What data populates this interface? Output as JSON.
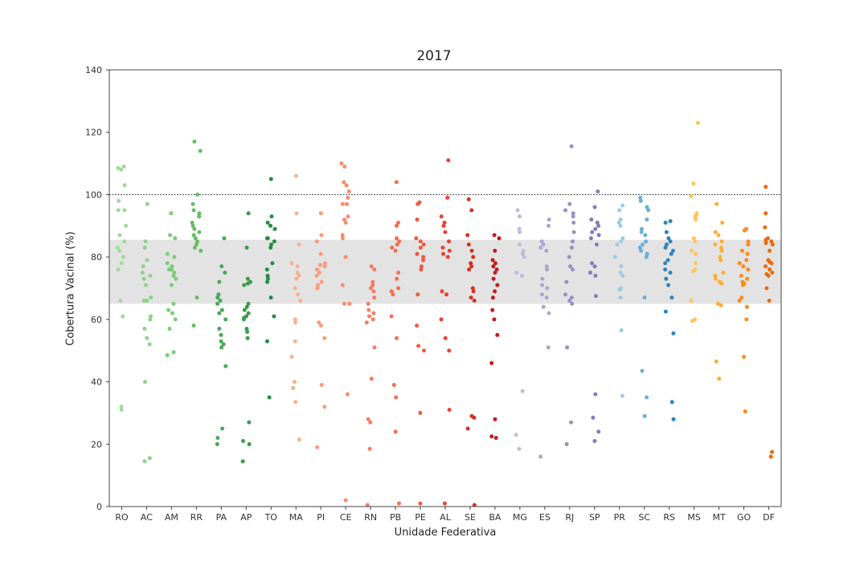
{
  "chart_data": {
    "type": "scatter",
    "title": "2017",
    "xlabel": "Unidade Federativa",
    "ylabel": "Cobertura Vacinal (%)",
    "ylim": [
      0,
      140
    ],
    "yticks": [
      0,
      20,
      40,
      60,
      80,
      100,
      120,
      140
    ],
    "reference_line": 100,
    "shaded_band": [
      65,
      85.5
    ],
    "grid": false,
    "categories": [
      "RO",
      "AC",
      "AM",
      "RR",
      "PA",
      "AP",
      "TO",
      "MA",
      "PI",
      "CE",
      "RN",
      "PB",
      "PE",
      "AL",
      "SE",
      "BA",
      "MG",
      "ES",
      "RJ",
      "SP",
      "PR",
      "SC",
      "RS",
      "MS",
      "MT",
      "GO",
      "DF"
    ],
    "series": [
      {
        "color": "#a1d99b",
        "values": [
          109,
          108.5,
          108,
          103,
          98,
          95,
          95,
          90,
          87,
          85,
          83,
          82,
          80,
          78,
          76,
          66,
          61,
          32,
          31
        ]
      },
      {
        "color": "#8fd18b",
        "values": [
          97,
          85,
          83,
          79,
          77,
          75,
          74,
          73,
          71,
          67,
          66,
          66,
          61,
          60,
          57,
          54,
          52,
          40,
          15.5,
          14.5
        ]
      },
      {
        "color": "#7acb77",
        "values": [
          94,
          87,
          86,
          81,
          80,
          78,
          77,
          76,
          76,
          75,
          74,
          73,
          71,
          65,
          63,
          62,
          60,
          57,
          49.5,
          48.5
        ]
      },
      {
        "color": "#66bd63",
        "values": [
          117,
          114,
          100,
          97,
          95,
          94,
          93,
          91,
          90,
          89,
          88,
          87,
          86,
          85,
          84,
          83,
          82,
          67,
          58
        ]
      },
      {
        "color": "#49a75a",
        "values": [
          86,
          77,
          75,
          72,
          68,
          67,
          66,
          65,
          63,
          62,
          60,
          57,
          55,
          53,
          52,
          51,
          45,
          25,
          22,
          20
        ]
      },
      {
        "color": "#3a9a4c",
        "values": [
          94,
          83,
          73,
          72,
          71.5,
          71,
          65,
          64,
          63,
          62,
          61,
          60.5,
          60,
          57,
          56,
          54,
          27,
          21,
          20,
          14.5
        ]
      },
      {
        "color": "#238b45",
        "values": [
          105,
          93,
          91,
          90,
          89,
          86,
          86,
          85,
          84,
          83,
          78,
          76,
          74,
          73,
          72,
          67,
          61,
          53,
          35
        ]
      },
      {
        "color": "#fcae91",
        "values": [
          106,
          94,
          84,
          78,
          77,
          75,
          74,
          73,
          70,
          68,
          66,
          60,
          59,
          53,
          48,
          40,
          38,
          33.5,
          21.5
        ]
      },
      {
        "color": "#fb9a7a",
        "values": [
          94,
          87,
          85,
          81,
          78,
          77.5,
          77,
          76,
          75,
          74,
          72,
          71,
          70,
          59,
          58,
          54,
          39,
          32,
          19
        ]
      },
      {
        "color": "#fb8a6a",
        "values": [
          110,
          109,
          104,
          103,
          101,
          99,
          97,
          97,
          93,
          92,
          91,
          87,
          86,
          80,
          71,
          65,
          65,
          36,
          2
        ]
      },
      {
        "color": "#f77b60",
        "values": [
          77,
          76,
          72,
          71,
          70,
          69,
          67,
          65,
          63,
          62,
          61,
          60,
          59,
          51,
          41,
          28,
          27,
          18.5,
          0.5
        ]
      },
      {
        "color": "#f46d4f",
        "values": [
          104,
          91,
          90,
          86,
          85,
          84,
          83,
          82,
          75,
          73,
          70,
          69,
          68,
          61,
          54,
          39,
          35,
          24,
          1
        ]
      },
      {
        "color": "#ef5940",
        "values": [
          97.5,
          97,
          92,
          86,
          85,
          84,
          83,
          81,
          80,
          79,
          77,
          76,
          68,
          58,
          51.5,
          50,
          30,
          1
        ]
      },
      {
        "color": "#ea4032",
        "values": [
          111,
          99,
          93,
          91,
          90,
          88,
          85,
          83,
          82,
          81,
          80,
          69,
          68,
          60,
          54,
          50,
          31,
          1
        ]
      },
      {
        "color": "#d7301f",
        "values": [
          98.5,
          95,
          87,
          84,
          82,
          80,
          78,
          77,
          76,
          70,
          69,
          67,
          66,
          29,
          28.5,
          25,
          0.5
        ]
      },
      {
        "color": "#c21c1c",
        "values": [
          87,
          86,
          82,
          79,
          78,
          77,
          76,
          75,
          73,
          71,
          69,
          67,
          63,
          60,
          55,
          46,
          28,
          22.5,
          22
        ]
      },
      {
        "color": "#bcbddc",
        "values": [
          95,
          93,
          89,
          88,
          84,
          82,
          81,
          80,
          75,
          74,
          37,
          23,
          18.5
        ]
      },
      {
        "color": "#a9a6d1",
        "values": [
          92,
          90,
          85,
          84,
          83,
          82,
          77,
          76,
          73,
          71,
          70,
          68,
          67,
          64,
          62,
          51,
          16
        ]
      },
      {
        "color": "#9c8fc4",
        "values": [
          115.5,
          97,
          95,
          94,
          93,
          91,
          88,
          85,
          83,
          80,
          77,
          76,
          72,
          68,
          67,
          66,
          65,
          51,
          27,
          20
        ]
      },
      {
        "color": "#807dba",
        "values": [
          101,
          96,
          92,
          91,
          90,
          89,
          88,
          87,
          86,
          84,
          78,
          77,
          75,
          74,
          67.5,
          36,
          28.5,
          24,
          21
        ]
      },
      {
        "color": "#9ecae1",
        "values": [
          96.5,
          95,
          92,
          91,
          90,
          86,
          85,
          84,
          80,
          77,
          75,
          74,
          70,
          69.5,
          67,
          56.5,
          35.5
        ]
      },
      {
        "color": "#6baed6",
        "values": [
          99,
          98,
          96,
          95,
          92,
          89,
          88,
          87,
          85,
          84,
          83,
          82,
          81,
          80,
          67,
          43.5,
          35,
          29
        ]
      },
      {
        "color": "#3182bd",
        "values": [
          91.5,
          91,
          88,
          86,
          85,
          84,
          83,
          82,
          81,
          79,
          78,
          76,
          75,
          73,
          71,
          67,
          62.5,
          55.5,
          33.5,
          28
        ]
      },
      {
        "color": "#fdc45a",
        "values": [
          123,
          103.5,
          99.5,
          94,
          93.5,
          93,
          92.5,
          92,
          86,
          85,
          82,
          81,
          78,
          76,
          75.5,
          66,
          60,
          59.5
        ]
      },
      {
        "color": "#fdae35",
        "values": [
          97,
          91,
          88,
          87,
          85,
          84,
          83,
          82,
          80,
          79,
          75,
          74,
          73,
          72,
          71.5,
          65,
          64.5,
          46.5,
          41
        ]
      },
      {
        "color": "#f98c1c",
        "values": [
          89,
          88.5,
          85,
          84,
          82,
          81,
          79,
          78,
          77,
          76,
          74,
          73,
          72,
          71.5,
          71,
          67,
          66,
          64,
          60,
          48,
          30.5
        ]
      },
      {
        "color": "#ea6a0c",
        "values": [
          102.5,
          94,
          89.5,
          86,
          85.5,
          85,
          84.5,
          84,
          82,
          79,
          78.5,
          78,
          77,
          76,
          75,
          74.5,
          74,
          70,
          66,
          17.5,
          16
        ]
      }
    ]
  }
}
